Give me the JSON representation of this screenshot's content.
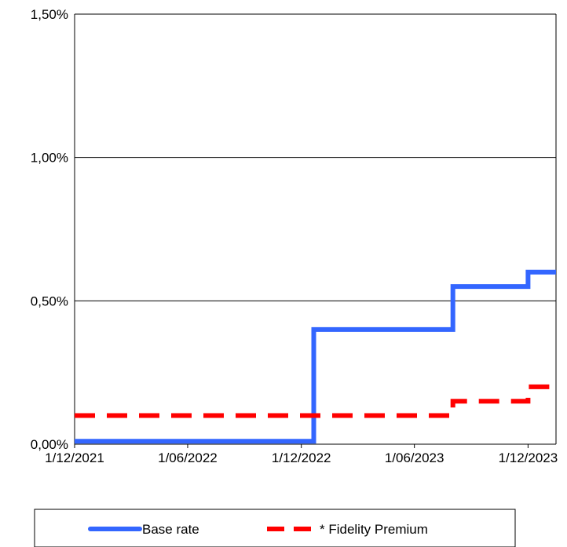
{
  "chart_data": {
    "type": "line",
    "title": "",
    "xlabel": "",
    "ylabel": "",
    "x_ticks": [
      "1/12/2021",
      "1/06/2022",
      "1/12/2022",
      "1/06/2023",
      "1/12/2023"
    ],
    "y_ticks": [
      "0,00%",
      "0,50%",
      "1,00%",
      "1,50%"
    ],
    "ylim": [
      0,
      1.5
    ],
    "xlim": [
      "2021-12-01",
      "2024-01-15"
    ],
    "grid": "horizontal",
    "legend_position": "bottom",
    "series": [
      {
        "name": "Base rate",
        "color": "#3366ff",
        "style": "solid-step",
        "points": [
          {
            "x": "2021-12-01",
            "y": 0.01
          },
          {
            "x": "2022-12-21",
            "y": 0.01
          },
          {
            "x": "2022-12-21",
            "y": 0.4
          },
          {
            "x": "2023-08-02",
            "y": 0.4
          },
          {
            "x": "2023-08-02",
            "y": 0.55
          },
          {
            "x": "2023-12-01",
            "y": 0.55
          },
          {
            "x": "2023-12-01",
            "y": 0.6
          },
          {
            "x": "2024-01-15",
            "y": 0.6
          }
        ]
      },
      {
        "name": "* Fidelity Premium",
        "color": "#ff0000",
        "style": "dashed-step",
        "points": [
          {
            "x": "2021-12-01",
            "y": 0.1
          },
          {
            "x": "2023-08-02",
            "y": 0.1
          },
          {
            "x": "2023-08-02",
            "y": 0.15
          },
          {
            "x": "2023-12-01",
            "y": 0.15
          },
          {
            "x": "2023-12-01",
            "y": 0.2
          },
          {
            "x": "2024-01-15",
            "y": 0.2
          }
        ]
      }
    ]
  }
}
